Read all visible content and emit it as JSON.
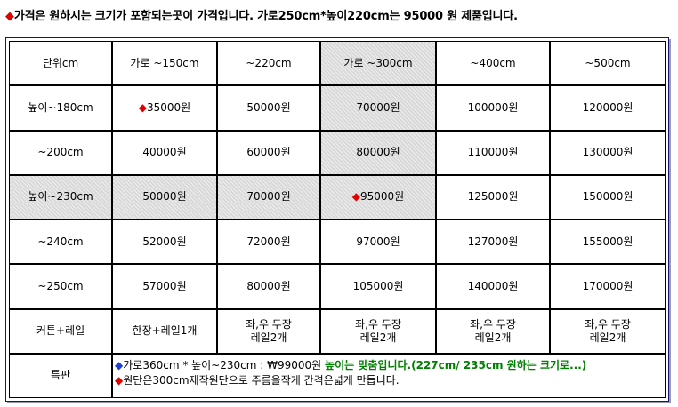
{
  "headline": {
    "marker": "◆",
    "text": "가격은  원하시는 크기가 포함되는곳이 가격입니다.  가로250cm*높이220cm는 95000 원 제품입니다."
  },
  "table": {
    "header": [
      "단위cm",
      "가로 ~150cm",
      "~220cm",
      "가로 ~300cm",
      "~400cm",
      "~500cm"
    ],
    "rows": [
      {
        "label": "높이~180cm",
        "cells": [
          "35000원",
          "50000원",
          "70000원",
          "100000원",
          "120000원"
        ]
      },
      {
        "label": "~200cm",
        "cells": [
          "40000원",
          "60000원",
          "80000원",
          "110000원",
          "130000원"
        ]
      },
      {
        "label": "높이~230cm",
        "cells": [
          "50000원",
          "70000원",
          "95000원",
          "125000원",
          "150000원"
        ]
      },
      {
        "label": "~240cm",
        "cells": [
          "52000원",
          "72000원",
          "97000원",
          "127000원",
          "155000원"
        ]
      },
      {
        "label": "~250cm",
        "cells": [
          "57000원",
          "80000원",
          "105000원",
          "140000원",
          "170000원"
        ]
      }
    ],
    "rail_row": {
      "label": "커튼+레일",
      "cells": [
        [
          "한장+레일1개"
        ],
        [
          "좌,우 두장",
          "레일2개"
        ],
        [
          "좌,우 두장",
          "레일2개"
        ],
        [
          "좌,우 두장",
          "레일2개"
        ],
        [
          "좌,우 두장",
          "레일2개"
        ]
      ]
    },
    "special": {
      "label": "특판",
      "line1_marker": "◆",
      "line1_text": "가로360cm * 높이~230cm : ₩99000원",
      "line1_green": "높이는 맞춤입니다.(227cm/ 235cm  원하는 크기로...)",
      "line2_marker": "◆",
      "line2_text": "원단은300cm제작원단으로 주름을작게 간격은넓게 만듭니다."
    },
    "marker": "◆"
  },
  "colors": {
    "marker_red": "#e00000",
    "marker_blue": "#1f3fd0",
    "note_green": "#008000",
    "highlight_gray": "#d9d9d9",
    "frame_border": "#14146b"
  }
}
